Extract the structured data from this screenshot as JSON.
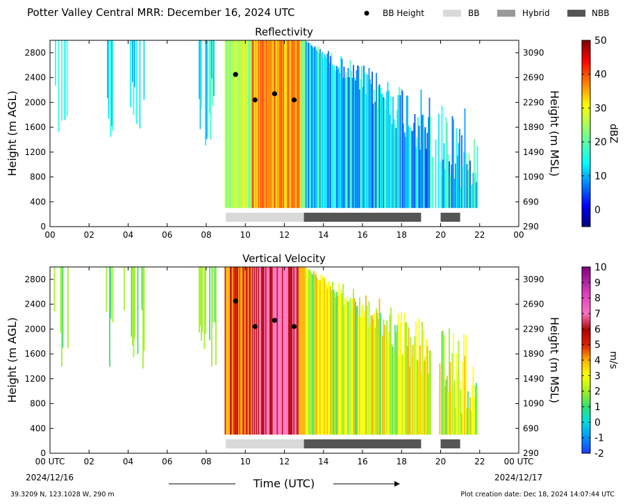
{
  "header": {
    "title": "Potter Valley Central MRR:  December 16, 2024 UTC",
    "legend": [
      {
        "label": "BB Height",
        "kind": "dot",
        "color": "#000000"
      },
      {
        "label": "BB",
        "kind": "bar",
        "color": "#d9d9d9"
      },
      {
        "label": "Hybrid",
        "kind": "bar",
        "color": "#9a9a9a"
      },
      {
        "label": "NBB",
        "kind": "bar",
        "color": "#555555"
      }
    ]
  },
  "footer": {
    "location": "39.3209 N, 123.1028 W, 290 m",
    "creation": "Plot creation date: Dec 18, 2024 14:07:44 UTC",
    "time_label": "Time (UTC)",
    "start_date": "2024/12/16",
    "end_date": "2024/12/17"
  },
  "chart_data": [
    {
      "type": "heatmap",
      "title": "Reflectivity",
      "ylabel": "Height (m AGL)",
      "ylabel_right": "Height (m MSL)",
      "xlim": [
        0,
        24
      ],
      "ylim": [
        0,
        3000
      ],
      "x_ticks": [
        "00",
        "02",
        "04",
        "06",
        "08",
        "10",
        "12",
        "14",
        "16",
        "18",
        "20",
        "22",
        "00"
      ],
      "y_ticks": [
        0,
        400,
        800,
        1200,
        1600,
        2000,
        2400,
        2800
      ],
      "y_ticks_right": [
        290,
        690,
        1090,
        1490,
        1890,
        2290,
        2690,
        3090
      ],
      "colorbar": {
        "label": "dBZ",
        "min": -5,
        "max": 50,
        "ticks": [
          0,
          10,
          20,
          30,
          40,
          50
        ],
        "colormap": "jet"
      },
      "bb_height": [
        {
          "x": 9.5,
          "y": 2450
        },
        {
          "x": 10.5,
          "y": 2040
        },
        {
          "x": 11.5,
          "y": 2140
        },
        {
          "x": 12.5,
          "y": 2040
        }
      ],
      "bb_type_bars": [
        {
          "start": 9,
          "end": 13,
          "type": "BB"
        },
        {
          "start": 13,
          "end": 19,
          "type": "NBB"
        },
        {
          "start": 20,
          "end": 21,
          "type": "NBB"
        }
      ]
    },
    {
      "type": "heatmap",
      "title": "Vertical Velocity",
      "ylabel": "Height (m AGL)",
      "ylabel_right": "Height (m MSL)",
      "xlim": [
        0,
        24
      ],
      "ylim": [
        0,
        3000
      ],
      "x_ticks": [
        "00 UTC",
        "02",
        "04",
        "06",
        "08",
        "10",
        "12",
        "14",
        "16",
        "18",
        "20",
        "22",
        "00 UTC"
      ],
      "y_ticks": [
        0,
        400,
        800,
        1200,
        1600,
        2000,
        2400,
        2800
      ],
      "y_ticks_right": [
        290,
        690,
        1090,
        1490,
        1890,
        2290,
        2690,
        3090
      ],
      "colorbar": {
        "label": "m/s",
        "min": -2,
        "max": 10,
        "ticks": [
          -2,
          -1,
          0,
          1,
          2,
          3,
          4,
          5,
          6,
          7,
          8,
          9,
          10
        ],
        "colormap": "velocity"
      },
      "bb_height": [
        {
          "x": 9.5,
          "y": 2450
        },
        {
          "x": 10.5,
          "y": 2040
        },
        {
          "x": 11.5,
          "y": 2140
        },
        {
          "x": 12.5,
          "y": 2040
        }
      ],
      "bb_type_bars": [
        {
          "start": 9,
          "end": 13,
          "type": "BB"
        },
        {
          "start": 13,
          "end": 19,
          "type": "NBB"
        },
        {
          "start": 20,
          "end": 21,
          "type": "NBB"
        }
      ]
    }
  ]
}
